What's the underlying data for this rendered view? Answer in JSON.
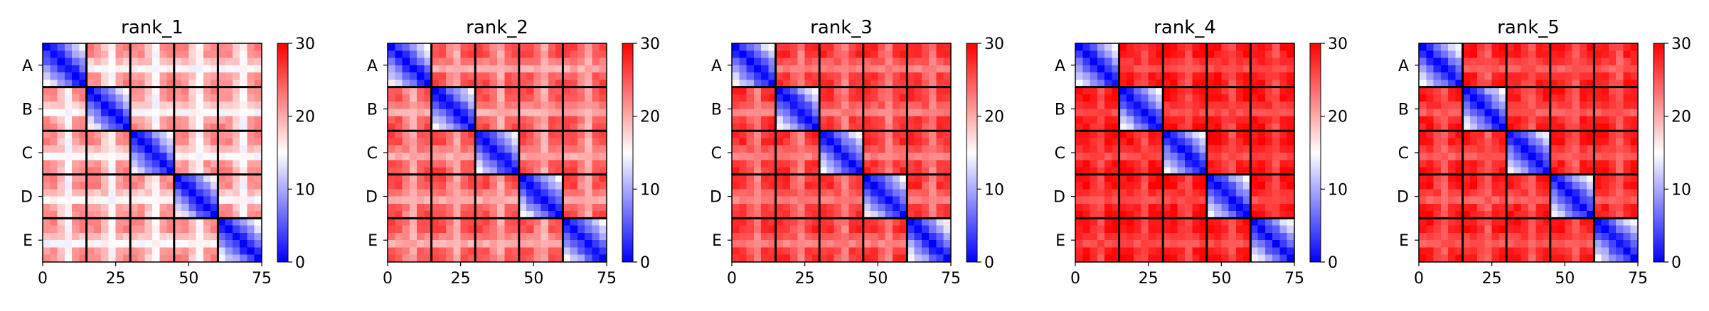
{
  "chart_data": [
    {
      "type": "heatmap",
      "title": "rank_1",
      "row_labels": [
        "A",
        "B",
        "C",
        "D",
        "E"
      ],
      "x_ticks": [
        0,
        25,
        50,
        75
      ],
      "xlim": [
        0,
        75
      ],
      "colorbar": {
        "ticks": [
          0,
          10,
          20,
          30
        ],
        "range": [
          0,
          30
        ]
      },
      "blocks": 5,
      "block_size": 15,
      "diag_ratio": 1.0,
      "offdiag_level": 0.62,
      "cross_strength": 0.85
    },
    {
      "type": "heatmap",
      "title": "rank_2",
      "row_labels": [
        "A",
        "B",
        "C",
        "D",
        "E"
      ],
      "x_ticks": [
        0,
        25,
        50,
        75
      ],
      "xlim": [
        0,
        75
      ],
      "colorbar": {
        "ticks": [
          0,
          10,
          20,
          30
        ],
        "range": [
          0,
          30
        ]
      },
      "blocks": 5,
      "block_size": 15,
      "diag_ratio": 1.0,
      "offdiag_level": 0.74,
      "cross_strength": 0.7
    },
    {
      "type": "heatmap",
      "title": "rank_3",
      "row_labels": [
        "A",
        "B",
        "C",
        "D",
        "E"
      ],
      "x_ticks": [
        0,
        25,
        50,
        75
      ],
      "xlim": [
        0,
        75
      ],
      "colorbar": {
        "ticks": [
          0,
          10,
          20,
          30
        ],
        "range": [
          0,
          30
        ]
      },
      "blocks": 5,
      "block_size": 15,
      "diag_ratio": 1.0,
      "offdiag_level": 0.8,
      "cross_strength": 0.6
    },
    {
      "type": "heatmap",
      "title": "rank_4",
      "row_labels": [
        "A",
        "B",
        "C",
        "D",
        "E"
      ],
      "x_ticks": [
        0,
        25,
        50,
        75
      ],
      "xlim": [
        0,
        75
      ],
      "colorbar": {
        "ticks": [
          0,
          10,
          20,
          30
        ],
        "range": [
          0,
          30
        ]
      },
      "blocks": 5,
      "block_size": 15,
      "diag_ratio": 1.0,
      "offdiag_level": 0.86,
      "cross_strength": 0.45
    },
    {
      "type": "heatmap",
      "title": "rank_5",
      "row_labels": [
        "A",
        "B",
        "C",
        "D",
        "E"
      ],
      "x_ticks": [
        0,
        25,
        50,
        75
      ],
      "xlim": [
        0,
        75
      ],
      "colorbar": {
        "ticks": [
          0,
          10,
          20,
          30
        ],
        "range": [
          0,
          30
        ]
      },
      "blocks": 5,
      "block_size": 15,
      "diag_ratio": 1.0,
      "offdiag_level": 0.84,
      "cross_strength": 0.5
    }
  ],
  "colors": {
    "low": "#0000ff",
    "mid": "#ffffff",
    "high": "#ff0000",
    "grid": "#000000"
  },
  "colormap": "bwr"
}
